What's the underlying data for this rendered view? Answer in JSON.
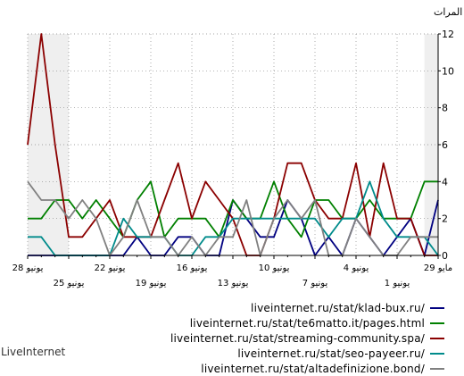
{
  "chart_data": {
    "type": "line",
    "ylabel": "المرات",
    "ylim": [
      0,
      12
    ],
    "yticks": [
      0,
      2,
      4,
      6,
      8,
      10,
      12
    ],
    "grid": true,
    "x_axis_direction": "right-to-left",
    "x": [
      "29 مايو",
      "30 مايو",
      "31 مايو",
      "1 يونيو",
      "2 يونيو",
      "3 يونيو",
      "4 يونيو",
      "5 يونيو",
      "6 يونيو",
      "7 يونيو",
      "8 يونيو",
      "9 يونيو",
      "10 يونيو",
      "11 يونيو",
      "12 يونيو",
      "13 يونيو",
      "14 يونيو",
      "15 يونيو",
      "16 يونيو",
      "17 يونيو",
      "18 يونيو",
      "19 يونيو",
      "20 يونيو",
      "21 يونيو",
      "22 يونيو",
      "23 يونيو",
      "24 يونيو",
      "25 يونيو",
      "26 يونيو",
      "27 يونيو",
      "28 يونيو"
    ],
    "x_tick_labels": [
      {
        "label": "29 مايو",
        "row": 1
      },
      {
        "label": "1 يونيو",
        "row": 2
      },
      {
        "label": "4 يونيو",
        "row": 1
      },
      {
        "label": "7 يونيو",
        "row": 2
      },
      {
        "label": "10 يونيو",
        "row": 1
      },
      {
        "label": "13 يونيو",
        "row": 2
      },
      {
        "label": "16 يونيو",
        "row": 1
      },
      {
        "label": "19 يونيو",
        "row": 2
      },
      {
        "label": "22 يونيو",
        "row": 1
      },
      {
        "label": "25 يونيو",
        "row": 2
      },
      {
        "label": "28 يونيو",
        "row": 1
      }
    ],
    "series": [
      {
        "name": "liveinternet.ru/stat/klad-bux.ru/",
        "color": "#000080",
        "values": [
          3,
          0,
          2,
          1,
          0,
          1,
          2,
          0,
          1,
          0,
          2,
          3,
          1,
          1,
          2,
          3,
          0,
          0,
          1,
          1,
          0,
          0,
          1,
          0,
          0,
          0,
          0,
          0,
          0,
          0,
          0
        ]
      },
      {
        "name": "liveinternet.ru/stat/te6matto.it/pages.html",
        "color": "#008000",
        "values": [
          4,
          4,
          2,
          2,
          2,
          3,
          2,
          2,
          3,
          3,
          1,
          2,
          4,
          2,
          2,
          3,
          1,
          2,
          2,
          2,
          1,
          4,
          3,
          1,
          2,
          3,
          2,
          3,
          3,
          2,
          2
        ]
      },
      {
        "name": "liveinternet.ru/stat/streaming-community.spa/",
        "color": "#8b0000",
        "values": [
          0,
          0,
          2,
          2,
          5,
          1,
          5,
          2,
          2,
          3,
          5,
          5,
          2,
          0,
          0,
          2,
          3,
          4,
          2,
          5,
          3,
          1,
          1,
          1,
          3,
          2,
          1,
          1,
          6,
          12,
          6
        ]
      },
      {
        "name": "liveinternet.ru/stat/seo-payeer.ru/",
        "color": "#008b8b",
        "values": [
          0,
          1,
          1,
          1,
          2,
          4,
          2,
          2,
          1,
          2,
          2,
          2,
          2,
          2,
          2,
          2,
          1,
          1,
          0,
          0,
          1,
          1,
          1,
          2,
          0,
          0,
          0,
          0,
          0,
          1,
          1
        ]
      },
      {
        "name": "liveinternet.ru/stat/altadefinizione.bond/",
        "color": "#808080",
        "values": [
          1,
          1,
          1,
          0,
          0,
          1,
          2,
          0,
          0,
          3,
          2,
          3,
          2,
          0,
          3,
          1,
          1,
          0,
          1,
          0,
          1,
          1,
          3,
          1,
          0,
          2,
          3,
          2,
          3,
          3,
          4
        ]
      }
    ]
  },
  "footer": "LiveInternet"
}
